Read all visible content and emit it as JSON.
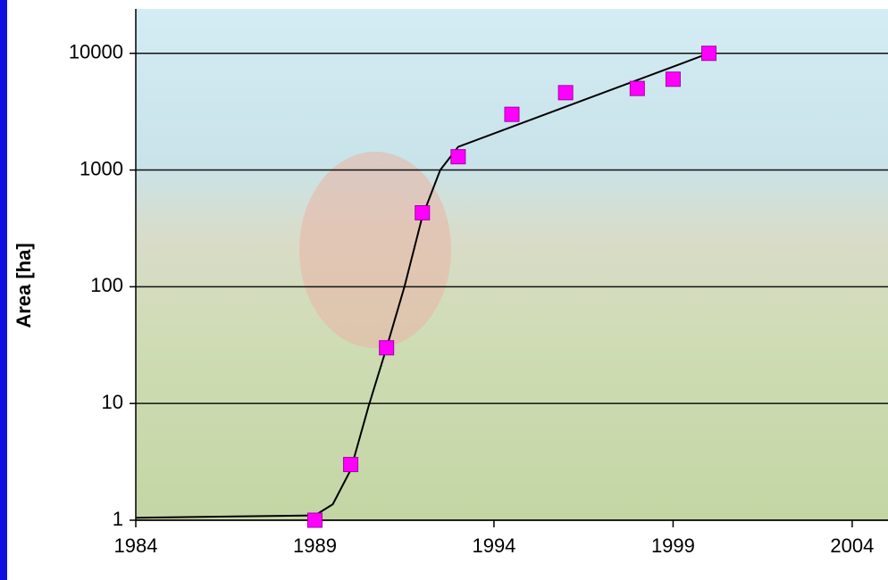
{
  "chart_data": {
    "type": "scatter",
    "y_label": "Area [ha]",
    "log_y": true,
    "grid": true,
    "x": [
      1989,
      1990,
      1991,
      1992,
      1993,
      1994.5,
      1996,
      1998,
      1999,
      2000
    ],
    "series": [
      {
        "color": "#ff00ff",
        "values": [
          1,
          3,
          30,
          430,
          1300,
          3000,
          4600,
          5000,
          6000,
          10000
        ]
      }
    ],
    "trendline": {
      "color": "#000000",
      "x": [
        1984,
        1989,
        1989.5,
        1990,
        1990.5,
        1991,
        1991.5,
        1992,
        1992.5,
        1993,
        2000
      ],
      "values": [
        1.05,
        1.1,
        1.37,
        2.7,
        9.5,
        30,
        100,
        400,
        1000,
        1580,
        10000
      ]
    },
    "xlim": [
      1984,
      2005
    ],
    "xticks": [
      1984,
      1989,
      1994,
      1999,
      2004
    ],
    "ylim": [
      1,
      24000
    ],
    "yticks": [
      1,
      10,
      100,
      1000,
      10000
    ]
  }
}
